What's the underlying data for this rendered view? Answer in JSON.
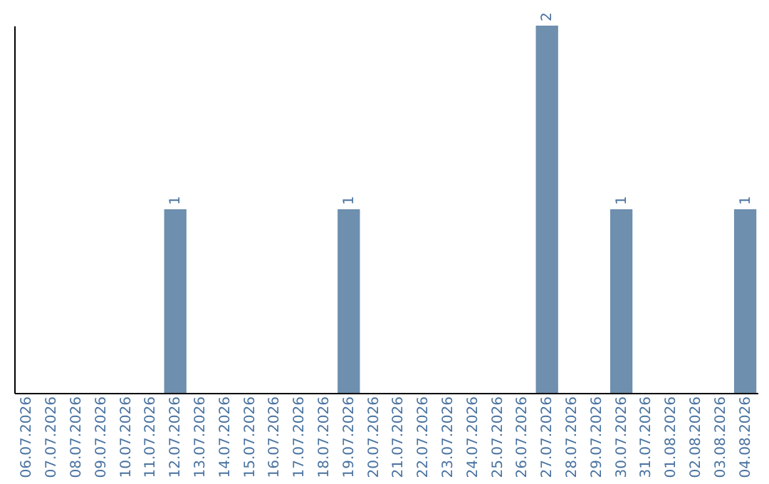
{
  "chart_data": {
    "type": "bar",
    "categories": [
      "06.07.2026",
      "07.07.2026",
      "08.07.2026",
      "09.07.2026",
      "10.07.2026",
      "11.07.2026",
      "12.07.2026",
      "13.07.2026",
      "14.07.2026",
      "15.07.2026",
      "16.07.2026",
      "17.07.2026",
      "18.07.2026",
      "19.07.2026",
      "20.07.2026",
      "21.07.2026",
      "22.07.2026",
      "23.07.2026",
      "24.07.2026",
      "25.07.2026",
      "26.07.2026",
      "27.07.2026",
      "28.07.2026",
      "29.07.2026",
      "30.07.2026",
      "31.07.2026",
      "01.08.2026",
      "02.08.2026",
      "03.08.2026",
      "04.08.2026"
    ],
    "values": [
      0,
      0,
      0,
      0,
      0,
      0,
      1,
      0,
      0,
      0,
      0,
      0,
      0,
      1,
      0,
      0,
      0,
      0,
      0,
      0,
      0,
      2,
      0,
      0,
      1,
      0,
      0,
      0,
      0,
      1
    ],
    "value_labels": [
      null,
      null,
      null,
      null,
      null,
      null,
      "1",
      null,
      null,
      null,
      null,
      null,
      null,
      "1",
      null,
      null,
      null,
      null,
      null,
      null,
      null,
      "2",
      null,
      null,
      "1",
      null,
      null,
      null,
      null,
      "1"
    ],
    "color": "#6e8fae",
    "tick_labels": "x",
    "grid": false
  }
}
